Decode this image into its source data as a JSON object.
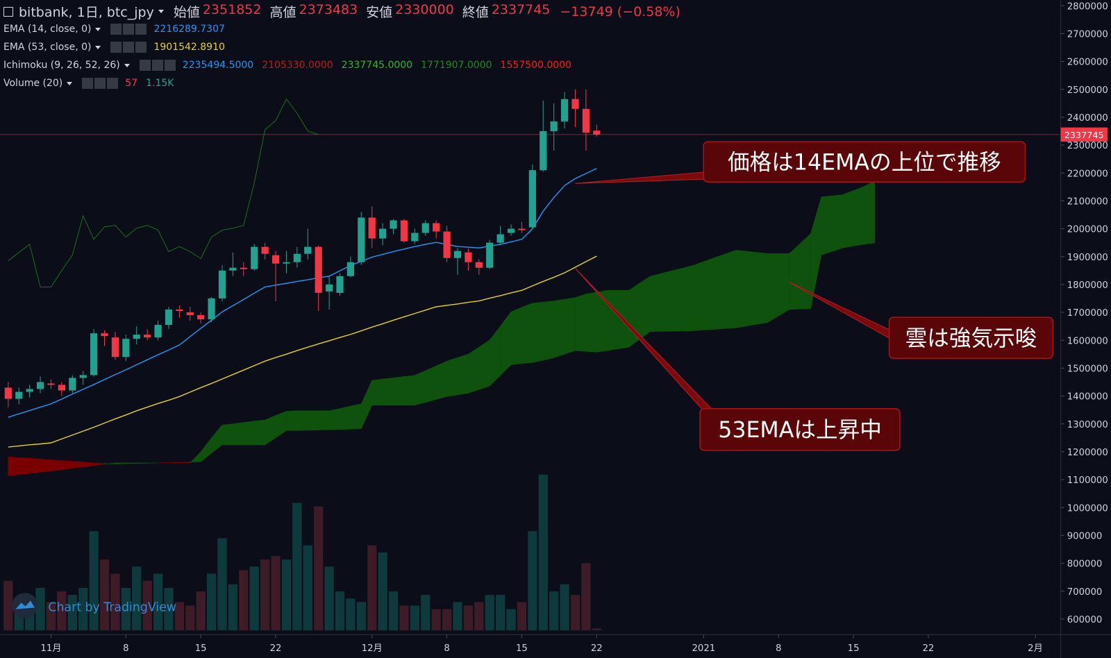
{
  "header": {
    "symbol": "bitbank, 1日, btc_jpy",
    "fields": [
      {
        "label": "始値",
        "value": 2351852
      },
      {
        "label": "高値",
        "value": 2373483
      },
      {
        "label": "安値",
        "value": 2330000
      },
      {
        "label": "終値",
        "value": 2337745
      }
    ],
    "change": "−13749 (−0.58%)"
  },
  "watermark": "Chart by TradingView",
  "chart_data": {
    "type": "candlestick",
    "categories": [
      null,
      null,
      null,
      null,
      "11月",
      null,
      null,
      null,
      null,
      null,
      null,
      "8",
      null,
      null,
      null,
      null,
      null,
      null,
      "15",
      null,
      null,
      null,
      null,
      null,
      null,
      "22",
      null,
      null,
      null,
      null,
      null,
      null,
      null,
      null,
      "12月",
      null,
      null,
      null,
      null,
      null,
      null,
      "8",
      null,
      null,
      null,
      null,
      null,
      null,
      "15",
      null,
      null,
      null,
      null,
      null,
      null,
      "22",
      null,
      null,
      null,
      null,
      null,
      null,
      null,
      null,
      null,
      "2021",
      null,
      null,
      null,
      null,
      null,
      null,
      "8",
      null,
      null,
      null,
      null,
      null,
      null,
      "15",
      null,
      null,
      null,
      null,
      null,
      null,
      "22",
      null,
      null,
      null,
      null,
      null,
      null,
      null,
      null,
      null,
      "2月"
    ],
    "ylim": [
      600000,
      2800000
    ],
    "yticks": [
      600000,
      700000,
      800000,
      900000,
      1000000,
      1100000,
      1200000,
      1300000,
      1400000,
      1500000,
      1600000,
      1700000,
      1800000,
      1900000,
      2000000,
      2100000,
      2200000,
      2300000,
      2400000,
      2500000,
      2600000,
      2700000,
      2800000
    ],
    "grid": false,
    "up_color": "#22a28e",
    "down_color": "#f23645",
    "open": [
      1430000,
      1390000,
      1415000,
      1425000,
      1445000,
      1440000,
      1420000,
      1465000,
      1475000,
      1625000,
      1610000,
      1540000,
      1605000,
      1620000,
      1610000,
      1655000,
      1710000,
      1700000,
      1690000,
      1675000,
      1750000,
      1850000,
      1860000,
      1855000,
      1935000,
      1905000,
      1875000,
      1880000,
      1910000,
      1935000,
      1775000,
      1770000,
      1830000,
      1880000,
      2040000,
      1965000,
      2000000,
      2030000,
      1955000,
      1985000,
      2020000,
      1990000,
      1895000,
      1915000,
      1880000,
      1860000,
      1950000,
      1985000,
      2000000,
      2005000,
      2210000,
      2350000,
      2385000,
      2465000,
      2430000,
      2351852,
      null,
      null,
      null,
      null,
      null,
      null,
      null,
      null,
      null,
      null,
      null,
      null,
      null,
      null,
      null,
      null,
      null,
      null,
      null,
      null,
      null,
      null,
      null,
      null,
      null,
      null,
      null,
      null,
      null,
      null,
      null,
      null,
      null,
      null,
      null,
      null,
      null,
      null,
      null,
      null,
      null
    ],
    "high": [
      1450000,
      1430000,
      1440000,
      1470000,
      1460000,
      1450000,
      1475000,
      1490000,
      1640000,
      1635000,
      1630000,
      1620000,
      1650000,
      1640000,
      1670000,
      1720000,
      1725000,
      1720000,
      1700000,
      1755000,
      1870000,
      1915000,
      1880000,
      1945000,
      1950000,
      1920000,
      1920000,
      1935000,
      2000000,
      1940000,
      1830000,
      1840000,
      1900000,
      2060000,
      2080000,
      2020000,
      2035000,
      2035000,
      2000000,
      2030000,
      2030000,
      2010000,
      1930000,
      1930000,
      1890000,
      1960000,
      2010000,
      2015000,
      2025000,
      2230000,
      2460000,
      2450000,
      2490000,
      2500000,
      2500000,
      2373483,
      null,
      null,
      null,
      null,
      null,
      null,
      null,
      null,
      null,
      null,
      null,
      null,
      null,
      null,
      null,
      null,
      null,
      null,
      null,
      null,
      null,
      null,
      null,
      null,
      null,
      null,
      null,
      null,
      null,
      null,
      null,
      null,
      null,
      null,
      null,
      null,
      null,
      null,
      null,
      null,
      null
    ],
    "low": [
      1360000,
      1370000,
      1395000,
      1410000,
      1425000,
      1400000,
      1410000,
      1440000,
      1470000,
      1580000,
      1530000,
      1525000,
      1585000,
      1600000,
      1600000,
      1640000,
      1680000,
      1670000,
      1660000,
      1665000,
      1740000,
      1830000,
      1830000,
      1850000,
      1890000,
      1740000,
      1840000,
      1860000,
      1890000,
      1705000,
      1710000,
      1760000,
      1825000,
      1870000,
      1930000,
      1940000,
      1980000,
      1950000,
      1945000,
      1975000,
      1965000,
      1880000,
      1835000,
      1850000,
      1835000,
      1855000,
      1945000,
      1975000,
      1985000,
      2000000,
      2205000,
      2280000,
      2360000,
      2365000,
      2280000,
      2330000,
      null,
      null,
      null,
      null,
      null,
      null,
      null,
      null,
      null,
      null,
      null,
      null,
      null,
      null,
      null,
      null,
      null,
      null,
      null,
      null,
      null,
      null,
      null,
      null,
      null,
      null,
      null,
      null,
      null,
      null,
      null,
      null,
      null,
      null,
      null,
      null,
      null,
      null,
      null,
      null,
      null
    ],
    "close": [
      1390000,
      1415000,
      1425000,
      1450000,
      1440000,
      1420000,
      1465000,
      1475000,
      1625000,
      1615000,
      1540000,
      1605000,
      1620000,
      1610000,
      1655000,
      1710000,
      1705000,
      1690000,
      1675000,
      1750000,
      1850000,
      1860000,
      1855000,
      1935000,
      1910000,
      1875000,
      1880000,
      1910000,
      1935000,
      1770000,
      1800000,
      1830000,
      1880000,
      2040000,
      1965000,
      2000000,
      2030000,
      1955000,
      1985000,
      2020000,
      1990000,
      1895000,
      1920000,
      1880000,
      1860000,
      1950000,
      1980000,
      2000000,
      1995000,
      2210000,
      2350000,
      2385000,
      2465000,
      2430000,
      2345000,
      2337745,
      null,
      null,
      null,
      null,
      null,
      null,
      null,
      null,
      null,
      null,
      null,
      null,
      null,
      null,
      null,
      null,
      null,
      null,
      null,
      null,
      null,
      null,
      null,
      null,
      null,
      null,
      null,
      null,
      null,
      null,
      null,
      null,
      null,
      null,
      null,
      null,
      null,
      null,
      null,
      null,
      null
    ],
    "series": [
      {
        "name": "EMA (14, close, 0)",
        "color": "#2196f3",
        "last": "2216289.7307",
        "values": [
          1324000,
          1336000,
          1348000,
          1360000,
          1372000,
          1389000,
          1407000,
          1424000,
          1441000,
          1459000,
          1477000,
          1494000,
          1512000,
          1530000,
          1548000,
          1565000,
          1583000,
          1613000,
          1643000,
          1672000,
          1702000,
          1724000,
          1746000,
          1769000,
          1791000,
          1798000,
          1804000,
          1811000,
          1817000,
          1824000,
          1830000,
          1849000,
          1868000,
          1883000,
          1898000,
          1908000,
          1918000,
          1927000,
          1936000,
          1944000,
          1951000,
          1944000,
          1936000,
          1934000,
          1931000,
          1938000,
          1944000,
          1953000,
          1962000,
          2000000,
          2063000,
          2112000,
          2155000,
          2180000,
          2198000,
          2216290,
          null,
          null,
          null,
          null,
          null,
          null,
          null,
          null,
          null,
          null,
          null,
          null,
          null,
          null,
          null,
          null,
          null,
          null,
          null,
          null,
          null,
          null,
          null,
          null,
          null,
          null,
          null,
          null,
          null,
          null,
          null,
          null,
          null,
          null,
          null,
          null,
          null,
          null,
          null,
          null,
          null
        ]
      },
      {
        "name": "EMA (53, close, 0)",
        "color": "#e6d21c",
        "last": "1901542.8910",
        "values": [
          1217000,
          1221000,
          1225000,
          1228000,
          1232000,
          1246000,
          1260000,
          1274000,
          1288000,
          1303000,
          1318000,
          1332000,
          1347000,
          1360000,
          1373000,
          1385000,
          1398000,
          1414000,
          1430000,
          1445000,
          1461000,
          1477000,
          1493000,
          1509000,
          1525000,
          1538000,
          1550000,
          1563000,
          1575000,
          1587000,
          1598000,
          1610000,
          1621000,
          1634000,
          1647000,
          1659000,
          1672000,
          1684000,
          1696000,
          1708000,
          1720000,
          1725000,
          1730000,
          1736000,
          1741000,
          1751000,
          1760000,
          1770000,
          1779000,
          1795000,
          1811000,
          1826000,
          1842000,
          1862000,
          1882000,
          1901543,
          null,
          null,
          null,
          null,
          null,
          null,
          null,
          null,
          null,
          null,
          null,
          null,
          null,
          null,
          null,
          null,
          null,
          null,
          null,
          null,
          null,
          null,
          null,
          null,
          null,
          null,
          null,
          null,
          null,
          null,
          null,
          null,
          null,
          null,
          null,
          null,
          null,
          null,
          null,
          null,
          null
        ]
      }
    ],
    "cloud": {
      "name": "Ichimoku (9, 26, 52, 26)",
      "up_color": "#0e520e",
      "down_color": "#7a0000",
      "legend_values": [
        {
          "text": "2235494.5000",
          "color": "#2196f3"
        },
        {
          "text": "2105330.0000",
          "color": "#b71c1c"
        },
        {
          "text": "2337745.0000",
          "color": "#2fb52f"
        },
        {
          "text": "1771907.0000",
          "color": "#1e8a1e"
        },
        {
          "text": "1557500.0000",
          "color": "#ff1a1a"
        }
      ],
      "span_a": [
        1113000,
        1118000,
        1122000,
        1127000,
        1131000,
        1136000,
        1141000,
        1145000,
        1150000,
        1155000,
        1160000,
        1160000,
        1160000,
        1160000,
        1160000,
        1160000,
        1160000,
        1160000,
        1200000,
        1250000,
        1296000,
        1300000,
        1305000,
        1310000,
        1314000,
        1330000,
        1345000,
        1347000,
        1347000,
        1347000,
        1347000,
        1355000,
        1364000,
        1372000,
        1456000,
        1461000,
        1465000,
        1470000,
        1474000,
        1491000,
        1508000,
        1525000,
        1538000,
        1550000,
        1575000,
        1601000,
        1650000,
        1702000,
        1718000,
        1733000,
        1737000,
        1741000,
        1747000,
        1753000,
        1766000,
        1771907,
        1779000,
        1779000,
        1779000,
        1804000,
        1829000,
        1839000,
        1849000,
        1858000,
        1868000,
        1882000,
        1896000,
        1909000,
        1923000,
        1919000,
        1915000,
        1911000,
        1911000,
        1911000,
        1946000,
        1982000,
        2114000,
        2118000,
        2122000,
        2137000,
        2152000,
        2172000,
        null,
        null,
        null,
        null,
        null,
        null,
        null,
        null,
        null,
        null,
        null,
        null,
        null,
        null,
        null
      ],
      "span_b": [
        1182000,
        1179000,
        1177000,
        1174000,
        1171000,
        1168000,
        1166000,
        1163000,
        1160000,
        1158000,
        1156000,
        1157000,
        1158000,
        1159000,
        1160000,
        1161000,
        1162000,
        1163000,
        1164000,
        1195000,
        1225000,
        1225000,
        1225000,
        1225000,
        1225000,
        1250000,
        1276000,
        1276000,
        1277000,
        1278000,
        1279000,
        1280000,
        1281000,
        1283000,
        1367000,
        1367000,
        1367000,
        1367000,
        1367000,
        1377000,
        1388000,
        1398000,
        1404000,
        1410000,
        1423000,
        1436000,
        1474000,
        1512000,
        1516000,
        1520000,
        1528000,
        1537000,
        1550000,
        1563000,
        1560000,
        1557500,
        1563000,
        1569000,
        1575000,
        1603000,
        1631000,
        1632000,
        1632000,
        1633000,
        1634000,
        1637000,
        1639000,
        1642000,
        1644000,
        1651000,
        1657000,
        1664000,
        1687000,
        1710000,
        1712000,
        1713000,
        1906000,
        1918000,
        1931000,
        1938000,
        1944000,
        1949000,
        null,
        null,
        null,
        null,
        null,
        null,
        null,
        null,
        null,
        null,
        null,
        null,
        null,
        null,
        null
      ],
      "chikou": {
        "color": "#1a6e1a",
        "values": [
          1885000,
          1915000,
          1944000,
          1791000,
          1791000,
          1850000,
          1906000,
          2046000,
          1962000,
          2007000,
          2012000,
          1970000,
          2002000,
          2012000,
          1995000,
          1918000,
          1936000,
          1918000,
          1893000,
          1970000,
          1995000,
          2002000,
          2012000,
          2165000,
          2355000,
          2388000,
          2465000,
          2414000,
          2350000,
          2337745,
          null,
          null,
          null,
          null,
          null,
          null,
          null,
          null,
          null,
          null,
          null,
          null,
          null,
          null,
          null,
          null,
          null,
          null,
          null,
          null,
          null,
          null,
          null,
          null,
          null,
          null,
          null,
          null,
          null,
          null,
          null,
          null,
          null,
          null,
          null,
          null,
          null,
          null,
          null,
          null,
          null,
          null,
          null,
          null,
          null,
          null,
          null,
          null,
          null,
          null,
          null,
          null,
          null,
          null,
          null,
          null,
          null,
          null,
          null,
          null,
          null,
          null,
          null,
          null,
          null,
          null,
          null
        ]
      }
    },
    "volume": {
      "name": "Volume (20)",
      "y2lim": [
        0,
        4500
      ],
      "up_color": "#0f3a3d",
      "down_color": "#3d1b27",
      "legend_values": [
        {
          "text": "57",
          "color": "#f23645"
        },
        {
          "text": "1.15K",
          "color": "#22a28e"
        }
      ],
      "values": [
        1400,
        900,
        900,
        1200,
        800,
        1100,
        1000,
        1200,
        2800,
        2000,
        1600,
        1200,
        1800,
        1400,
        1600,
        1200,
        800,
        700,
        1100,
        1600,
        2600,
        1300,
        1700,
        1800,
        2000,
        2100,
        2000,
        3600,
        2400,
        3500,
        1800,
        1100,
        900,
        800,
        2400,
        2200,
        1100,
        700,
        700,
        1000,
        600,
        600,
        800,
        700,
        800,
        1000,
        1000,
        600,
        800,
        2800,
        4400,
        1100,
        1300,
        1000,
        1900,
        57,
        null,
        null,
        null,
        null,
        null,
        null,
        null,
        null,
        null,
        null,
        null,
        null,
        null,
        null,
        null,
        null,
        null,
        null,
        null,
        null,
        null,
        null,
        null,
        null,
        null,
        null,
        null,
        null,
        null,
        null,
        null,
        null,
        null,
        null,
        null,
        null,
        null,
        null,
        null,
        null,
        null
      ]
    },
    "price_line": 2337745,
    "price_line_color": "#f23645",
    "annotations": [
      {
        "text": "価格は14EMAの上位で推移"
      },
      {
        "text": "雲は強気示唆"
      },
      {
        "text": "53EMAは上昇中"
      }
    ]
  }
}
